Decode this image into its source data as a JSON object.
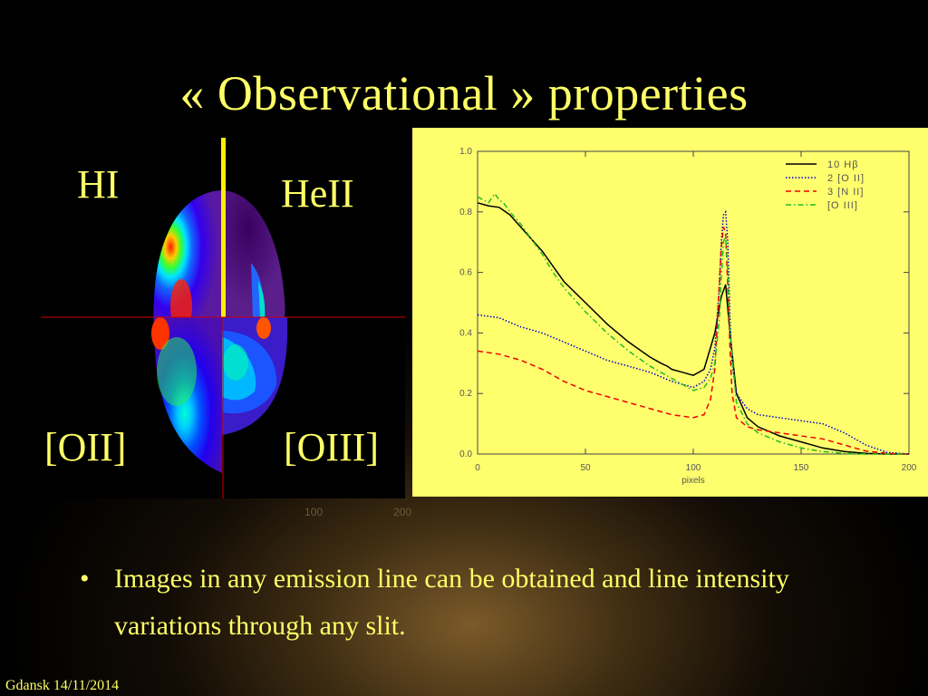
{
  "slide": {
    "title": "« Observational » properties",
    "bullet_marker": "•",
    "bullet_text": "Images in any emission line can be obtained and line intensity variations through any slit.",
    "footer": "Gdansk 14/11/2014"
  },
  "map": {
    "labels": {
      "hi": "HI",
      "heii": "HeII",
      "oii": "[OII]",
      "oiii": "[OIII]"
    },
    "under_ticks": [
      "100",
      "200"
    ],
    "colors": {
      "divider": "#ffee00",
      "slit": "#cc0000"
    }
  },
  "chart_data": {
    "type": "line",
    "xlabel": "pixels",
    "ylabel": "",
    "xlim": [
      0,
      200
    ],
    "ylim": [
      0,
      1.0
    ],
    "xticks": [
      "0",
      "50",
      "100",
      "150",
      "200"
    ],
    "yticks": [
      "0.0",
      "0.2",
      "0.4",
      "0.6",
      "0.8",
      "1.0"
    ],
    "legend_position": "top-right",
    "series": [
      {
        "name": "10 Hβ",
        "color": "#000000",
        "dash": "",
        "x": [
          0,
          5,
          10,
          15,
          20,
          25,
          30,
          35,
          40,
          50,
          60,
          70,
          80,
          85,
          88,
          90,
          95,
          100,
          105,
          110,
          113,
          115,
          117,
          120,
          125,
          130,
          140,
          150,
          160,
          170,
          180,
          190,
          200
        ],
        "y": [
          0.83,
          0.82,
          0.815,
          0.79,
          0.75,
          0.71,
          0.67,
          0.62,
          0.57,
          0.5,
          0.43,
          0.37,
          0.32,
          0.3,
          0.29,
          0.28,
          0.27,
          0.26,
          0.28,
          0.4,
          0.52,
          0.56,
          0.4,
          0.2,
          0.12,
          0.09,
          0.06,
          0.04,
          0.02,
          0.008,
          0.002,
          0.0,
          0.0
        ]
      },
      {
        "name": "2 [O II]",
        "color": "#0000cc",
        "dash": "1.5,2",
        "x": [
          0,
          10,
          20,
          30,
          40,
          50,
          60,
          70,
          80,
          90,
          100,
          105,
          108,
          110,
          112,
          113,
          114,
          115,
          116,
          117,
          118,
          120,
          125,
          130,
          140,
          150,
          160,
          170,
          180,
          190,
          200
        ],
        "y": [
          0.46,
          0.45,
          0.42,
          0.4,
          0.37,
          0.34,
          0.31,
          0.29,
          0.27,
          0.24,
          0.22,
          0.24,
          0.28,
          0.35,
          0.55,
          0.7,
          0.79,
          0.8,
          0.7,
          0.45,
          0.3,
          0.2,
          0.15,
          0.13,
          0.12,
          0.11,
          0.1,
          0.07,
          0.03,
          0.005,
          0.0
        ]
      },
      {
        "name": "3 [N II]",
        "color": "#ee0000",
        "dash": "6,4",
        "x": [
          0,
          10,
          20,
          30,
          40,
          50,
          60,
          70,
          80,
          90,
          100,
          105,
          108,
          110,
          112,
          113,
          114,
          115,
          116,
          117,
          118,
          120,
          125,
          130,
          140,
          150,
          160,
          170,
          180,
          190,
          200
        ],
        "y": [
          0.34,
          0.33,
          0.31,
          0.28,
          0.24,
          0.21,
          0.19,
          0.17,
          0.15,
          0.13,
          0.12,
          0.13,
          0.18,
          0.28,
          0.55,
          0.68,
          0.75,
          0.73,
          0.55,
          0.35,
          0.2,
          0.12,
          0.09,
          0.08,
          0.07,
          0.06,
          0.05,
          0.03,
          0.01,
          0.002,
          0.0
        ]
      },
      {
        "name": "[O III]",
        "color": "#22bb22",
        "dash": "6,3,1.5,3",
        "x": [
          0,
          5,
          8,
          10,
          12,
          15,
          20,
          25,
          30,
          35,
          40,
          50,
          60,
          70,
          80,
          90,
          100,
          105,
          108,
          110,
          112,
          113,
          114,
          115,
          116,
          117,
          120,
          125,
          130,
          140,
          150,
          160,
          170,
          180,
          190,
          200
        ],
        "y": [
          0.85,
          0.83,
          0.86,
          0.84,
          0.83,
          0.8,
          0.76,
          0.71,
          0.66,
          0.6,
          0.55,
          0.47,
          0.4,
          0.34,
          0.29,
          0.25,
          0.21,
          0.22,
          0.25,
          0.3,
          0.44,
          0.58,
          0.7,
          0.72,
          0.6,
          0.4,
          0.17,
          0.1,
          0.07,
          0.04,
          0.02,
          0.008,
          0.002,
          0.0,
          0.0,
          0.0
        ]
      }
    ]
  }
}
